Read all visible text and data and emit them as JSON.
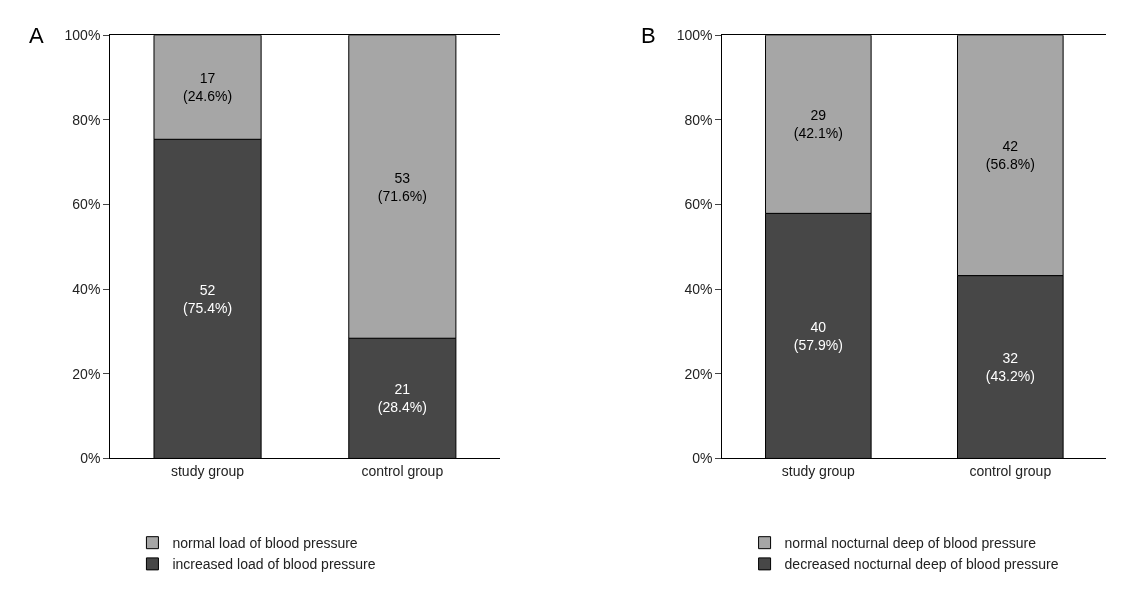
{
  "chart_data": [
    {
      "type": "bar",
      "title": "A",
      "categories": [
        "study group",
        "control group"
      ],
      "stacked": true,
      "ylim": [
        0,
        100
      ],
      "yticks": [
        {
          "value": 0,
          "label": "0%"
        },
        {
          "value": 20,
          "label": "20%"
        },
        {
          "value": 40,
          "label": "40%"
        },
        {
          "value": 60,
          "label": "60%"
        },
        {
          "value": 80,
          "label": "80%"
        },
        {
          "value": 100,
          "label": "100%"
        }
      ],
      "legend": "bottom",
      "series": [
        {
          "name": "increased load of blood pressure",
          "color": "#474747",
          "values": [
            75.4,
            28.4
          ],
          "value_labels": [
            "52\n(75.4%)",
            "21\n(28.4%)"
          ]
        },
        {
          "name": "normal load of blood pressure",
          "color": "#a6a6a6",
          "values": [
            24.6,
            71.6
          ],
          "value_labels": [
            "17\n(24.6%)",
            "53\n(71.6%)"
          ]
        }
      ]
    },
    {
      "type": "bar",
      "title": "B",
      "categories": [
        "study group",
        "control group"
      ],
      "stacked": true,
      "ylim": [
        0,
        100
      ],
      "yticks": [
        {
          "value": 0,
          "label": "0%"
        },
        {
          "value": 20,
          "label": "20%"
        },
        {
          "value": 40,
          "label": "40%"
        },
        {
          "value": 60,
          "label": "60%"
        },
        {
          "value": 80,
          "label": "80%"
        },
        {
          "value": 100,
          "label": "100%"
        }
      ],
      "legend": "bottom",
      "series": [
        {
          "name": "decreased nocturnal deep of blood pressure",
          "color": "#474747",
          "values": [
            57.9,
            43.2
          ],
          "value_labels": [
            "40\n(57.9%)",
            "32\n(43.2%)"
          ]
        },
        {
          "name": "normal nocturnal deep of blood pressure",
          "color": "#a6a6a6",
          "values": [
            42.1,
            56.8
          ],
          "value_labels": [
            "29\n(42.1%)",
            "42\n(56.8%)"
          ]
        }
      ]
    }
  ]
}
